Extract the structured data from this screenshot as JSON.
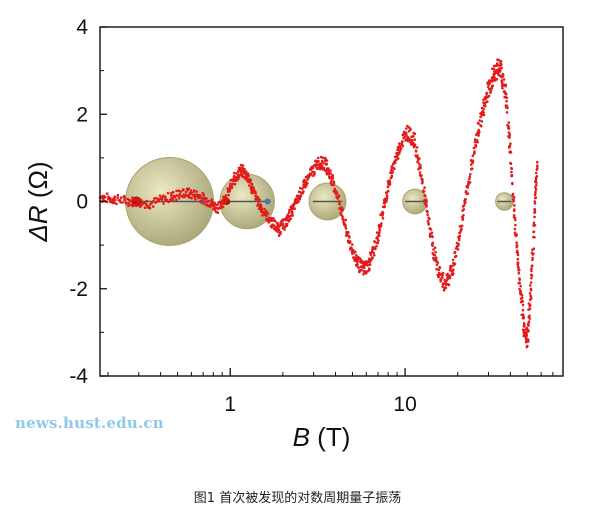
{
  "watermark": "news.hust.edu.cn",
  "caption": "图1 首次被发现的对数周期量子振荡",
  "colors": {
    "data": "#e31b1b",
    "bubble": "#c9c48a",
    "axis": "#111111"
  },
  "chart_data": {
    "type": "scatter",
    "x_scale": "log",
    "xlim": [
      0.18,
      80
    ],
    "ylim": [
      -4,
      4
    ],
    "x_ticks": [
      1,
      10
    ],
    "x_tick_labels": [
      "1",
      "10"
    ],
    "y_ticks": [
      -4,
      -2,
      0,
      2,
      4
    ],
    "y_tick_labels": [
      "-4",
      "-2",
      "0",
      "2",
      "4"
    ],
    "xlabel_italic": "B",
    "xlabel_rest": " (T)",
    "ylabel_italic": "ΔR",
    "ylabel_rest": " (Ω)",
    "grid": false,
    "series": [
      {
        "marker": "dot",
        "x": [
          0.18,
          0.22,
          0.28,
          0.35,
          0.45,
          0.55,
          0.65,
          0.75,
          0.85,
          0.95,
          1.05,
          1.15,
          1.25,
          1.35,
          1.5,
          1.7,
          1.9,
          2.1,
          2.3,
          2.6,
          2.9,
          3.2,
          3.5,
          3.8,
          4.2,
          4.7,
          5.2,
          5.7,
          6.2,
          6.8,
          7.5,
          8.3,
          9.2,
          10.2,
          11.3,
          12.5,
          13.8,
          15.2,
          16.8,
          18.5,
          20.4,
          22.5,
          25.0,
          27.5,
          30.0,
          32.5,
          35.0,
          37.5,
          40.0,
          42.5,
          45.0,
          47.5,
          50.0,
          52.5,
          55.0,
          57.0
        ],
        "y": [
          0.1,
          0.05,
          0.0,
          -0.05,
          0.1,
          0.2,
          0.15,
          0.0,
          -0.15,
          0.1,
          0.5,
          0.72,
          0.6,
          0.25,
          -0.15,
          -0.45,
          -0.65,
          -0.45,
          -0.15,
          0.3,
          0.65,
          0.9,
          0.85,
          0.55,
          0.0,
          -0.8,
          -1.3,
          -1.55,
          -1.45,
          -1.0,
          -0.2,
          0.6,
          1.2,
          1.6,
          1.4,
          0.5,
          -0.6,
          -1.5,
          -1.9,
          -1.6,
          -0.8,
          0.2,
          1.2,
          2.0,
          2.6,
          2.95,
          3.1,
          2.5,
          1.2,
          -0.5,
          -1.8,
          -2.8,
          -3.2,
          -2.0,
          -0.3,
          0.9
        ]
      }
    ],
    "bubbles": [
      {
        "x": 0.45,
        "y": 0.0
      },
      {
        "x": 1.25,
        "y": 0.0
      },
      {
        "x": 3.6,
        "y": 0.0
      },
      {
        "x": 11.4,
        "y": 0.0
      },
      {
        "x": 37.0,
        "y": 0.0
      }
    ],
    "bubble_size_ratio": [
      1.0,
      0.62,
      0.42,
      0.28,
      0.2
    ]
  }
}
